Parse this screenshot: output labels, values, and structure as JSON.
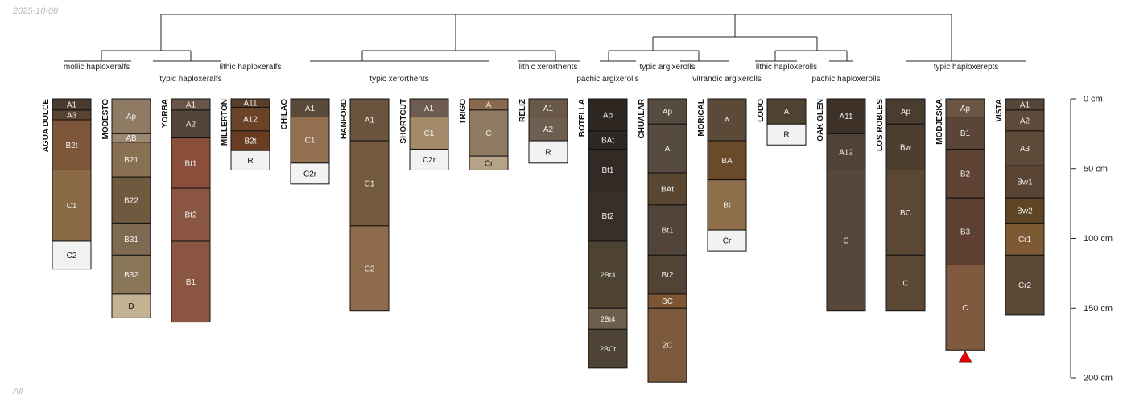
{
  "header_date": "2025-10-08",
  "footer_label": "All",
  "depth_axis": {
    "unit": "cm",
    "max_depth": 200,
    "ticks": [
      {
        "depth": 0,
        "label": "0 cm"
      },
      {
        "depth": 50,
        "label": "50 cm"
      },
      {
        "depth": 100,
        "label": "100 cm"
      },
      {
        "depth": 150,
        "label": "150 cm"
      },
      {
        "depth": 200,
        "label": "200 cm"
      }
    ]
  },
  "taxa": [
    {
      "label": "mollic haploxeralfs"
    },
    {
      "label": "typic haploxeralfs"
    },
    {
      "label": "lithic haploxeralfs"
    },
    {
      "label": "typic xerorthents"
    },
    {
      "label": "lithic xerorthents"
    },
    {
      "label": "pachic argixerolls"
    },
    {
      "label": "typic argixerolls"
    },
    {
      "label": "vitrandic argixerolls"
    },
    {
      "label": "lithic haploxerolls"
    },
    {
      "label": "pachic haploxerolls"
    },
    {
      "label": "typic haploxerepts"
    }
  ],
  "profiles": [
    {
      "name": "AGUA DULCE",
      "horizons": [
        {
          "name": "A1",
          "top": 0,
          "bottom": 8,
          "color": "#4a3b2e"
        },
        {
          "name": "A3",
          "top": 8,
          "bottom": 15,
          "color": "#594431"
        },
        {
          "name": "B2t",
          "top": 15,
          "bottom": 51,
          "color": "#7d5538"
        },
        {
          "name": "C1",
          "top": 51,
          "bottom": 102,
          "color": "#8a6b45"
        },
        {
          "name": "C2",
          "top": 102,
          "bottom": 122,
          "color": "#f2f2f2"
        }
      ]
    },
    {
      "name": "MODESTO",
      "horizons": [
        {
          "name": "Ap",
          "top": 0,
          "bottom": 25,
          "color": "#8f7a64"
        },
        {
          "name": "AB",
          "top": 25,
          "bottom": 31,
          "color": "#9c8870"
        },
        {
          "name": "B21",
          "top": 31,
          "bottom": 56,
          "color": "#8a7053"
        },
        {
          "name": "B22",
          "top": 56,
          "bottom": 89,
          "color": "#6f5a40"
        },
        {
          "name": "B31",
          "top": 89,
          "bottom": 112,
          "color": "#7d6a51"
        },
        {
          "name": "B32",
          "top": 112,
          "bottom": 140,
          "color": "#8a7659"
        },
        {
          "name": "D",
          "top": 140,
          "bottom": 157,
          "color": "#c4b393"
        }
      ]
    },
    {
      "name": "YORBA",
      "horizons": [
        {
          "name": "A1",
          "top": 0,
          "bottom": 8,
          "color": "#6b5548"
        },
        {
          "name": "A2",
          "top": 8,
          "bottom": 28,
          "color": "#54443a"
        },
        {
          "name": "Bt1",
          "top": 28,
          "bottom": 64,
          "color": "#8a4e3b"
        },
        {
          "name": "Bt2",
          "top": 64,
          "bottom": 102,
          "color": "#8a5542"
        },
        {
          "name": "B1",
          "top": 102,
          "bottom": 160,
          "color": "#8a5641"
        }
      ]
    },
    {
      "name": "MILLERTON",
      "horizons": [
        {
          "name": "A11",
          "top": 0,
          "bottom": 6,
          "color": "#5b3e2a"
        },
        {
          "name": "A12",
          "top": 6,
          "bottom": 23,
          "color": "#6b4327"
        },
        {
          "name": "B2t",
          "top": 23,
          "bottom": 37,
          "color": "#6a3c22"
        },
        {
          "name": "R",
          "top": 37,
          "bottom": 51,
          "color": "#f2f2f2"
        }
      ]
    },
    {
      "name": "CHILAO",
      "horizons": [
        {
          "name": "A1",
          "top": 0,
          "bottom": 13,
          "color": "#5a4a3a"
        },
        {
          "name": "C1",
          "top": 13,
          "bottom": 46,
          "color": "#937150"
        },
        {
          "name": "C2r",
          "top": 46,
          "bottom": 61,
          "color": "#f2f2f2"
        }
      ]
    },
    {
      "name": "HANFORD",
      "horizons": [
        {
          "name": "A1",
          "top": 0,
          "bottom": 30,
          "color": "#6a543e"
        },
        {
          "name": "C1",
          "top": 30,
          "bottom": 91,
          "color": "#735a3e"
        },
        {
          "name": "C2",
          "top": 91,
          "bottom": 152,
          "color": "#8e6c4b"
        }
      ]
    },
    {
      "name": "SHORTCUT",
      "horizons": [
        {
          "name": "A1",
          "top": 0,
          "bottom": 13,
          "color": "#6d5c4f"
        },
        {
          "name": "C1",
          "top": 13,
          "bottom": 36,
          "color": "#a38a6a"
        },
        {
          "name": "C2r",
          "top": 36,
          "bottom": 51,
          "color": "#f2f2f2"
        }
      ]
    },
    {
      "name": "TRIGO",
      "horizons": [
        {
          "name": "A",
          "top": 0,
          "bottom": 8,
          "color": "#8a6a4e"
        },
        {
          "name": "C",
          "top": 8,
          "bottom": 41,
          "color": "#8f7a62"
        },
        {
          "name": "Cr",
          "top": 41,
          "bottom": 51,
          "color": "#b5a387"
        }
      ]
    },
    {
      "name": "RELIZ",
      "horizons": [
        {
          "name": "A1",
          "top": 0,
          "bottom": 13,
          "color": "#6a5849"
        },
        {
          "name": "A2",
          "top": 13,
          "bottom": 30,
          "color": "#6e5f51"
        },
        {
          "name": "R",
          "top": 30,
          "bottom": 46,
          "color": "#f2f2f2"
        }
      ]
    },
    {
      "name": "BOTELLA",
      "horizons": [
        {
          "name": "Ap",
          "top": 0,
          "bottom": 23,
          "color": "#2e2620"
        },
        {
          "name": "BAt",
          "top": 23,
          "bottom": 36,
          "color": "#2f2722"
        },
        {
          "name": "Bt1",
          "top": 36,
          "bottom": 66,
          "color": "#342a25"
        },
        {
          "name": "Bt2",
          "top": 66,
          "bottom": 102,
          "color": "#3a2f28"
        },
        {
          "name": "2Bt3",
          "top": 102,
          "bottom": 150,
          "color": "#4e4232"
        },
        {
          "name": "2Bt4",
          "top": 150,
          "bottom": 165,
          "color": "#6e5e4c"
        },
        {
          "name": "2BCt",
          "top": 165,
          "bottom": 193,
          "color": "#4f4336"
        }
      ]
    },
    {
      "name": "CHUALAR",
      "horizons": [
        {
          "name": "Ap",
          "top": 0,
          "bottom": 18,
          "color": "#574a3e"
        },
        {
          "name": "A",
          "top": 18,
          "bottom": 53,
          "color": "#574a3e"
        },
        {
          "name": "BAt",
          "top": 53,
          "bottom": 76,
          "color": "#5a4732"
        },
        {
          "name": "Bt1",
          "top": 76,
          "bottom": 112,
          "color": "#524438"
        },
        {
          "name": "Bt2",
          "top": 112,
          "bottom": 140,
          "color": "#534335"
        },
        {
          "name": "BC",
          "top": 140,
          "bottom": 150,
          "color": "#7d5532"
        },
        {
          "name": "2C",
          "top": 150,
          "bottom": 203,
          "color": "#7d5a3c"
        }
      ]
    },
    {
      "name": "MORICAL",
      "horizons": [
        {
          "name": "A",
          "top": 0,
          "bottom": 30,
          "color": "#5b4a38"
        },
        {
          "name": "BA",
          "top": 30,
          "bottom": 58,
          "color": "#6b4a2a"
        },
        {
          "name": "Bt",
          "top": 58,
          "bottom": 94,
          "color": "#8f6e4b"
        },
        {
          "name": "Cr",
          "top": 94,
          "bottom": 109,
          "color": "#f2f2f2"
        }
      ]
    },
    {
      "name": "LODO",
      "horizons": [
        {
          "name": "A",
          "top": 0,
          "bottom": 18,
          "color": "#4f4233"
        },
        {
          "name": "R",
          "top": 18,
          "bottom": 33,
          "color": "#f2f2f2"
        }
      ]
    },
    {
      "name": "OAK GLEN",
      "horizons": [
        {
          "name": "A11",
          "top": 0,
          "bottom": 25,
          "color": "#3e3128"
        },
        {
          "name": "A12",
          "top": 25,
          "bottom": 51,
          "color": "#4f4236"
        },
        {
          "name": "C",
          "top": 51,
          "bottom": 152,
          "color": "#56473a"
        }
      ]
    },
    {
      "name": "LOS ROBLES",
      "horizons": [
        {
          "name": "Ap",
          "top": 0,
          "bottom": 18,
          "color": "#4a3c2f"
        },
        {
          "name": "Bw",
          "top": 18,
          "bottom": 51,
          "color": "#4d3e30"
        },
        {
          "name": "BC",
          "top": 51,
          "bottom": 112,
          "color": "#5a4834"
        },
        {
          "name": "C",
          "top": 112,
          "bottom": 152,
          "color": "#5a4834"
        }
      ]
    },
    {
      "name": "MODJESKA",
      "horizons": [
        {
          "name": "Ap",
          "top": 0,
          "bottom": 13,
          "color": "#6b5644"
        },
        {
          "name": "B1",
          "top": 13,
          "bottom": 36,
          "color": "#5a4638"
        },
        {
          "name": "B2",
          "top": 36,
          "bottom": 71,
          "color": "#5e4334"
        },
        {
          "name": "B3",
          "top": 71,
          "bottom": 119,
          "color": "#5e4032"
        },
        {
          "name": "C",
          "top": 119,
          "bottom": 180,
          "color": "#7f5a3e"
        }
      ]
    },
    {
      "name": "VISTA",
      "horizons": [
        {
          "name": "A1",
          "top": 0,
          "bottom": 8,
          "color": "#574537"
        },
        {
          "name": "A2",
          "top": 8,
          "bottom": 23,
          "color": "#5e4a39"
        },
        {
          "name": "A3",
          "top": 23,
          "bottom": 48,
          "color": "#5e4a39"
        },
        {
          "name": "Bw1",
          "top": 48,
          "bottom": 71,
          "color": "#5a4434"
        },
        {
          "name": "Bw2",
          "top": 71,
          "bottom": 89,
          "color": "#5e4526"
        },
        {
          "name": "Cr1",
          "top": 89,
          "bottom": 112,
          "color": "#7d5a34"
        },
        {
          "name": "Cr2",
          "top": 112,
          "bottom": 155,
          "color": "#5a4834"
        }
      ]
    }
  ],
  "marker": {
    "profile": "MODJESKA",
    "color": "#e00000"
  }
}
